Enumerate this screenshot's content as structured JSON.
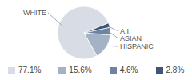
{
  "chart_data": {
    "type": "pie",
    "categories": [
      "WHITE",
      "HISPANIC",
      "ASIAN",
      "A.I."
    ],
    "values": [
      77.1,
      15.6,
      4.6,
      2.8
    ],
    "value_labels": [
      "77.1%",
      "15.6%",
      "4.6%",
      "2.8%"
    ],
    "colors": [
      "#d7dce5",
      "#a4b2c5",
      "#6e84a2",
      "#3c5778"
    ]
  }
}
